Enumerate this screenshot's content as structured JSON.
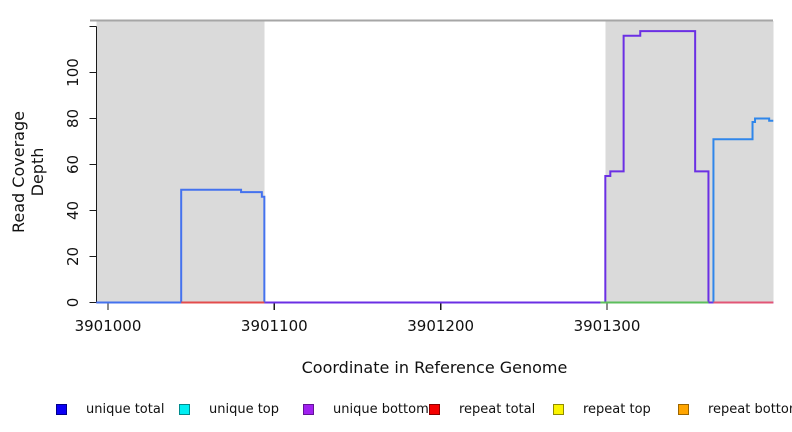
{
  "figure": {
    "xlabel": "Coordinate in Reference Genome",
    "ylabel": "Read Coverage Depth"
  },
  "chart_data": {
    "type": "line",
    "title": "",
    "xlabel": "Coordinate in Reference Genome",
    "ylabel": "Read Coverage Depth",
    "xlim": [
      3900993,
      3901400
    ],
    "ylim": [
      0,
      123
    ],
    "grid": false,
    "x_ticks": [
      {
        "value": 3901000,
        "label": "3901000"
      },
      {
        "value": 3901100,
        "label": "3901100"
      },
      {
        "value": 3901200,
        "label": "3901200"
      },
      {
        "value": 3901300,
        "label": "3901300"
      }
    ],
    "y_ticks": [
      {
        "value": 0,
        "label": "0"
      },
      {
        "value": 20,
        "label": "20"
      },
      {
        "value": 40,
        "label": "40"
      },
      {
        "value": 60,
        "label": "60"
      },
      {
        "value": 80,
        "label": "80"
      },
      {
        "value": 100,
        "label": "100"
      },
      {
        "value": 120,
        "label": ""
      }
    ],
    "shaded_regions": [
      {
        "from": 3900993,
        "to": 3901094
      },
      {
        "from": 3901299,
        "to": 3901400
      }
    ],
    "top_boundary_value": 122.5,
    "series": [
      {
        "name": "unique bottom coverage",
        "color": "#6b2fe4",
        "points": [
          [
            3900993,
            0
          ],
          [
            3901299,
            0
          ],
          [
            3901299,
            55
          ],
          [
            3901302,
            55
          ],
          [
            3901302,
            57
          ],
          [
            3901310,
            57
          ],
          [
            3901310,
            116
          ],
          [
            3901320,
            116
          ],
          [
            3901320,
            118
          ],
          [
            3901353,
            118
          ],
          [
            3901353,
            57
          ],
          [
            3901361,
            57
          ],
          [
            3901361,
            0
          ],
          [
            3901400,
            0
          ]
        ]
      },
      {
        "name": "unique total coverage left block",
        "color": "#4472ee",
        "points": [
          [
            3900993,
            0
          ],
          [
            3901044,
            0
          ],
          [
            3901044,
            49
          ],
          [
            3901080,
            49
          ],
          [
            3901080,
            48
          ],
          [
            3901092.5,
            48
          ],
          [
            3901092.5,
            46
          ],
          [
            3901094,
            46
          ],
          [
            3901094,
            0
          ]
        ]
      },
      {
        "name": "unique total coverage right block",
        "color": "#2f86ea",
        "points": [
          [
            3901364,
            0
          ],
          [
            3901364,
            71
          ],
          [
            3901387.5,
            71
          ],
          [
            3901387.5,
            78.5
          ],
          [
            3901389,
            78.5
          ],
          [
            3901389,
            80
          ],
          [
            3901397.5,
            80
          ],
          [
            3901397.5,
            79
          ],
          [
            3901400,
            79
          ]
        ]
      },
      {
        "name": "repeat total baseline segment",
        "color": "#e34c4c",
        "points": [
          [
            3901044,
            0
          ],
          [
            3901094,
            0
          ]
        ]
      },
      {
        "name": "green baseline segment",
        "color": "#5cbe5c",
        "points": [
          [
            3901296,
            0
          ],
          [
            3901361,
            0
          ]
        ]
      },
      {
        "name": "pink baseline segment",
        "color": "#e25576",
        "points": [
          [
            3901364,
            0
          ],
          [
            3901400,
            0
          ]
        ]
      }
    ],
    "legend": {
      "position": "bottom",
      "items": [
        {
          "label": "unique total",
          "color": "#0b00f5",
          "border": "#00008b"
        },
        {
          "label": "unique top",
          "color": "#00eef2",
          "border": "#008b8d"
        },
        {
          "label": "unique bottom",
          "color": "#a020f0",
          "border": "#641397"
        },
        {
          "label": "repeat total",
          "color": "#f50000",
          "border": "#8b0000"
        },
        {
          "label": "repeat top",
          "color": "#fbf400",
          "border": "#8f8b00"
        },
        {
          "label": "repeat bottom",
          "color": "#ffa500",
          "border": "#9c6500"
        }
      ]
    }
  },
  "colors": {
    "background": "#ffffff",
    "shade": "#dadada",
    "boundary_line": "#a6a6a6",
    "axis": "#1a1a1a",
    "tick_text": "#111111"
  }
}
